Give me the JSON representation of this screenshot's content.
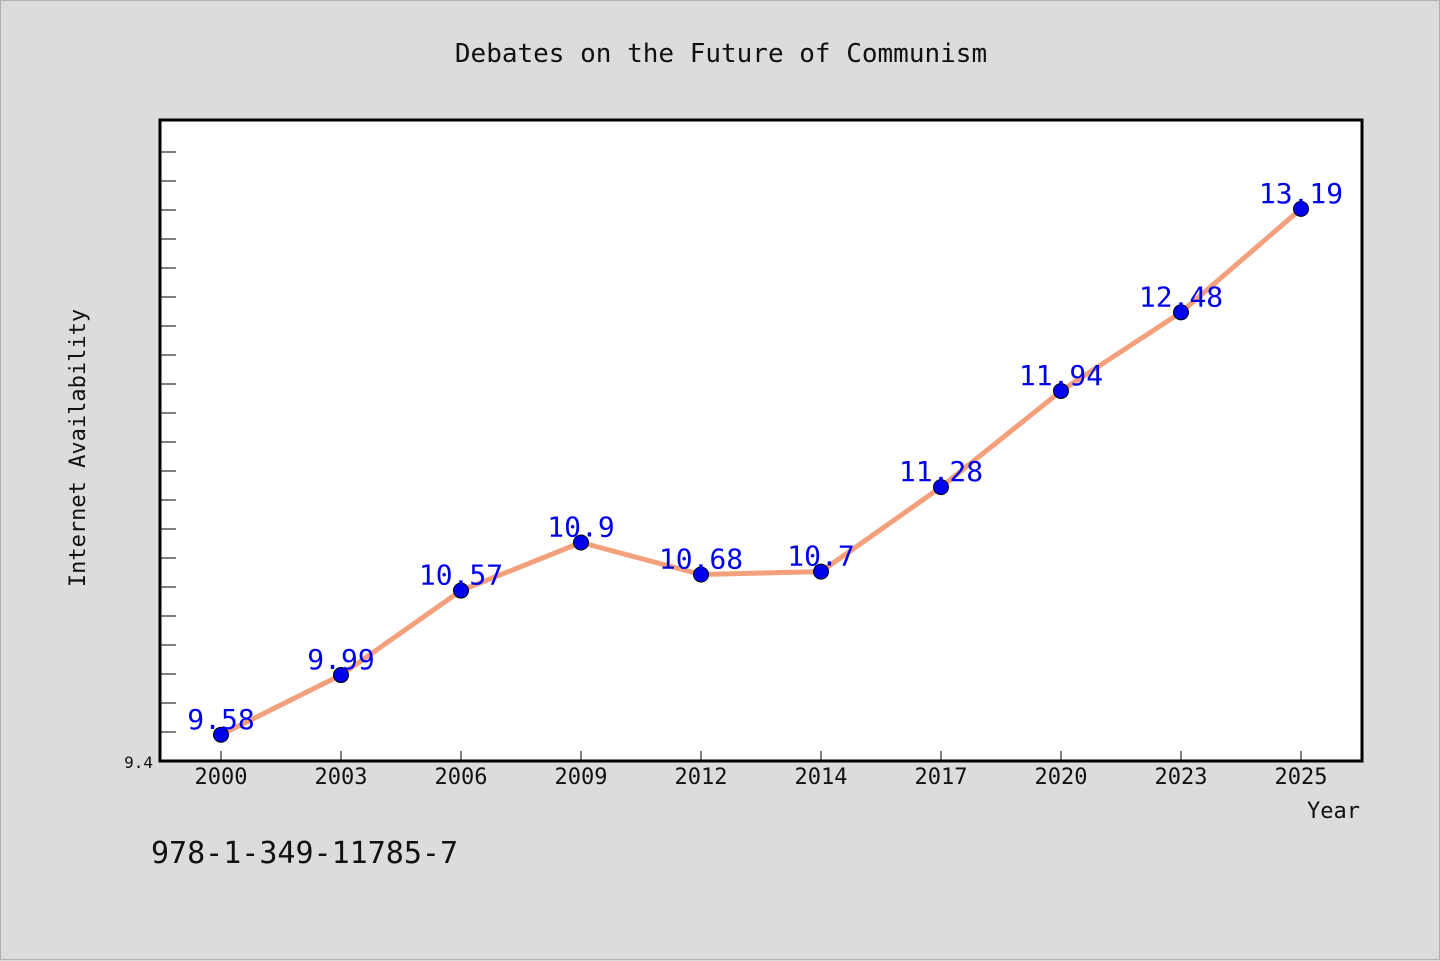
{
  "colors": {
    "background": "#dcdcdc",
    "plot_background": "#ffffff",
    "line": "#f4a07c",
    "marker_fill": "#0000ee",
    "label_color": "#0000ee"
  },
  "isbn_text": "978-1-349-11785-7",
  "chart_data": {
    "type": "line",
    "title": "Debates on the Future of Communism",
    "xlabel": "Year",
    "ylabel": "Internet Availability",
    "categories": [
      "2000",
      "2003",
      "2006",
      "2009",
      "2012",
      "2014",
      "2017",
      "2020",
      "2023",
      "2025"
    ],
    "series": [
      {
        "values": [
          9.58,
          9.99,
          10.57,
          10.9,
          10.68,
          10.7,
          11.28,
          11.94,
          12.48,
          13.19
        ],
        "labels": [
          "9.58",
          "9.99",
          "10.57",
          "10.9",
          "10.68",
          "10.7",
          "11.28",
          "11.94",
          "12.48",
          "13.19"
        ]
      }
    ],
    "ylim": [
      9.4,
      13.8
    ],
    "y_ticks_labeled": [
      "9.4"
    ],
    "grid": false,
    "legend": "none"
  }
}
